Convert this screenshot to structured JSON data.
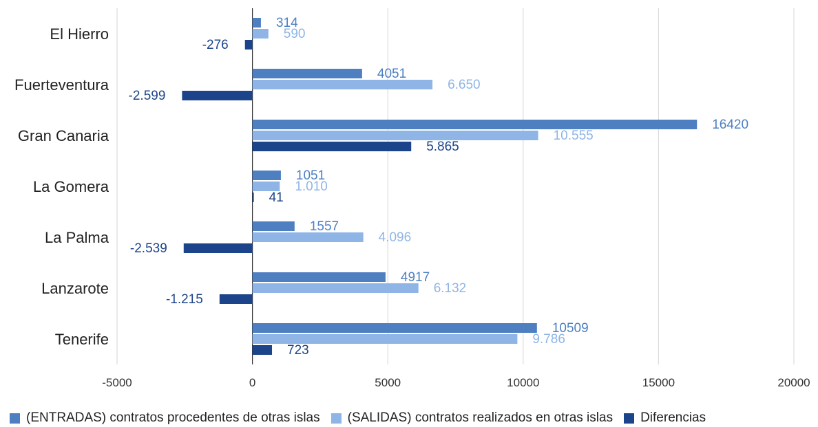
{
  "chart_data": {
    "type": "bar",
    "orientation": "horizontal",
    "title": "",
    "xlabel": "",
    "ylabel": "",
    "categories": [
      "El Hierro",
      "Fuerteventura",
      "Gran Canaria",
      "La Gomera",
      "La Palma",
      "Lanzarote",
      "Tenerife"
    ],
    "xlim": [
      -5000,
      20000
    ],
    "xticks": [
      -5000,
      0,
      5000,
      10000,
      15000,
      20000
    ],
    "xtick_labels": [
      "-5000",
      "0",
      "5000",
      "10000",
      "15000",
      "20000"
    ],
    "grid": "vertical",
    "legend_position": "bottom",
    "series": [
      {
        "name": "(ENTRADAS) contratos procedentes de otras islas",
        "color": "#4e7fc1",
        "values": [
          314,
          4051,
          16420,
          1051,
          1557,
          4917,
          10509
        ],
        "labels": [
          "314",
          "4051",
          "16420",
          "1051",
          "1557",
          "4917",
          "10509"
        ]
      },
      {
        "name": "(SALIDAS) contratos realizados en otras islas",
        "color": "#8fb5e6",
        "values": [
          590,
          6650,
          10555,
          1010,
          4096,
          6132,
          9786
        ],
        "labels": [
          "590",
          "6.650",
          "10.555",
          "1.010",
          "4.096",
          "6.132",
          "9.786"
        ]
      },
      {
        "name": "Diferencias",
        "color": "#1c448a",
        "values": [
          -276,
          -2599,
          5865,
          41,
          -2539,
          -1215,
          723
        ],
        "labels": [
          "-276",
          "-2.599",
          "5.865",
          "41",
          "-2.539",
          "-1.215",
          "723"
        ]
      }
    ]
  }
}
